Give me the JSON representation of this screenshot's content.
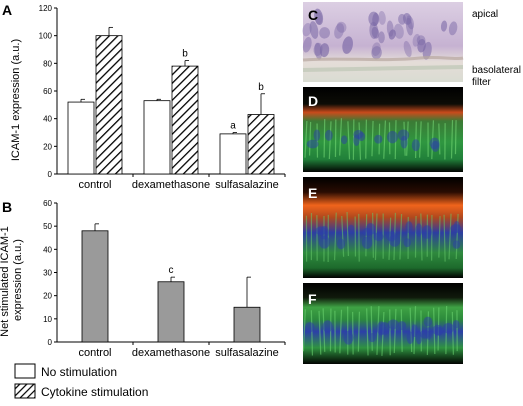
{
  "panels": {
    "A": {
      "letter": "A"
    },
    "B": {
      "letter": "B"
    },
    "C": {
      "letter": "C",
      "labels": [
        "apical",
        "basolateral",
        "filter"
      ]
    },
    "D": {
      "letter": "D"
    },
    "E": {
      "letter": "E"
    },
    "F": {
      "letter": "F"
    }
  },
  "legend": {
    "items": [
      {
        "label": "No stimulation",
        "fill": "white"
      },
      {
        "label": "Cytokine stimulation",
        "fill": "hatched"
      }
    ]
  },
  "colors": {
    "bar_gray": "#9a9a9a",
    "axis": "#000000",
    "fluor_green": "#3ea447",
    "fluor_blue": "#2c3fa8",
    "fluor_red": "#e2471c",
    "he_pink": "#cdbcd6",
    "he_nuclei": "#7c6aa7"
  },
  "chart_data": [
    {
      "type": "bar",
      "panel": "A",
      "categories": [
        "control",
        "dexamethasone",
        "sulfasalazine"
      ],
      "ylabel": "ICAM-1 expression (a.u.)",
      "ylim": [
        0,
        120
      ],
      "yticks": [
        "0",
        "20",
        "40",
        "60",
        "80",
        "100",
        "120"
      ],
      "series": [
        {
          "name": "No stimulation",
          "values": [
            52,
            53,
            29
          ],
          "errors": [
            2,
            1,
            1
          ],
          "annotations": [
            "",
            "",
            "a"
          ]
        },
        {
          "name": "Cytokine stimulation",
          "values": [
            100,
            78,
            43
          ],
          "errors": [
            6,
            4,
            15
          ],
          "annotations": [
            "",
            "b",
            "b"
          ]
        }
      ],
      "grid": false
    },
    {
      "type": "bar",
      "panel": "B",
      "categories": [
        "control",
        "dexamethasone",
        "sulfasalazine"
      ],
      "ylabel": "Net stimulated ICAM-1\nexpression (a.u.)",
      "ylim": [
        0,
        60
      ],
      "yticks": [
        "0",
        "10",
        "20",
        "30",
        "40",
        "50",
        "60"
      ],
      "series": [
        {
          "values": [
            48,
            26,
            15
          ],
          "errors": [
            3,
            2,
            13
          ],
          "annotations": [
            "",
            "c",
            ""
          ]
        }
      ],
      "grid": false
    }
  ]
}
